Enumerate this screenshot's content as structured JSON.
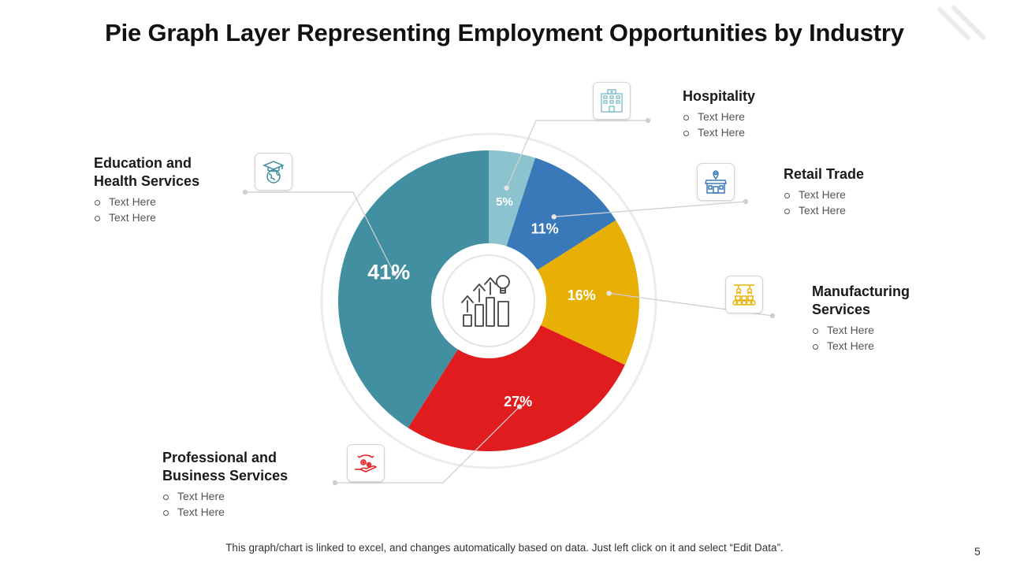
{
  "title": "Pie Graph Layer Representing Employment Opportunities by Industry",
  "footer": "This graph/chart is linked to excel, and changes automatically based on data. Just left click on it and select “Edit Data”.",
  "page_number": "5",
  "chart_data": {
    "type": "pie",
    "subtype": "donut",
    "unit": "%",
    "slices": [
      {
        "name": "Hospitality",
        "value": 5,
        "label": "5%",
        "color": "#8cc3cf"
      },
      {
        "name": "Retail Trade",
        "value": 11,
        "label": "11%",
        "color": "#3a79b9"
      },
      {
        "name": "Manufacturing Services",
        "value": 16,
        "label": "16%",
        "color": "#e8b004"
      },
      {
        "name": "Professional and Business Services",
        "value": 27,
        "label": "27%",
        "color": "#e11c1f"
      },
      {
        "name": "Education and Health Services",
        "value": 41,
        "label": "41%",
        "color": "#418fa1"
      }
    ],
    "legend": "callouts"
  },
  "callouts": {
    "hospitality": {
      "title_lines": [
        "Hospitality"
      ],
      "bullets": [
        "Text Here",
        "Text Here"
      ],
      "icon": "hotel-icon",
      "icon_color": "#8cc3cf"
    },
    "retail": {
      "title_lines": [
        "Retail Trade"
      ],
      "bullets": [
        "Text Here",
        "Text Here"
      ],
      "icon": "store-icon",
      "icon_color": "#3a79b9"
    },
    "manufacturing": {
      "title_lines": [
        "Manufacturing",
        "Services"
      ],
      "bullets": [
        "Text Here",
        "Text Here"
      ],
      "icon": "conveyor-icon",
      "icon_color": "#e8b004"
    },
    "professional": {
      "title_lines": [
        "Professional and",
        "Business Services"
      ],
      "bullets": [
        "Text Here",
        "Text Here"
      ],
      "icon": "hand-gears-icon",
      "icon_color": "#e11c1f"
    },
    "education": {
      "title_lines": [
        "Education and",
        "Health Services"
      ],
      "bullets": [
        "Text Here",
        "Text Here"
      ],
      "icon": "graduation-globe-icon",
      "icon_color": "#418fa1"
    }
  },
  "center_icon": "growth-bulb-icon"
}
